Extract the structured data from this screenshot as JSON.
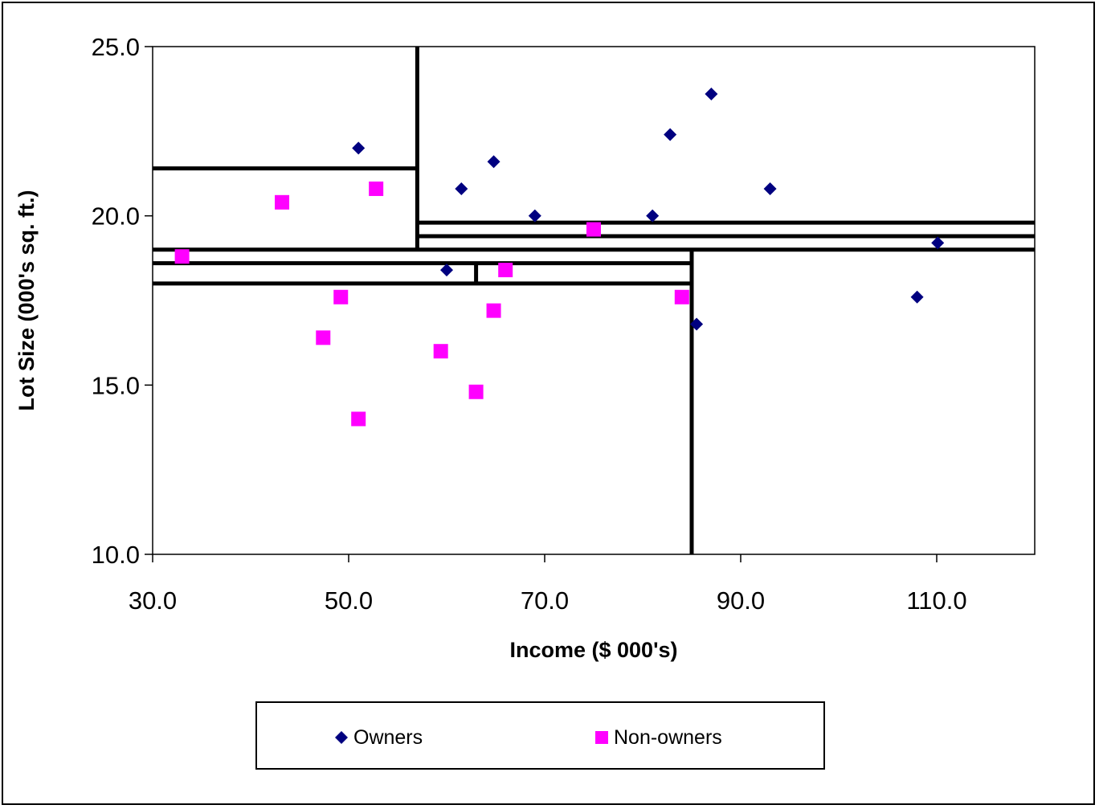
{
  "chart_data": {
    "type": "scatter",
    "title": "",
    "xlabel": "Income ($ 000's)",
    "ylabel": "Lot Size (000's sq. ft.)",
    "xlim": [
      30,
      120
    ],
    "ylim": [
      10,
      25
    ],
    "xticks": [
      "30.0",
      "50.0",
      "70.0",
      "90.0",
      "110.0"
    ],
    "xtick_values": [
      30,
      50,
      70,
      90,
      110
    ],
    "yticks": [
      "10.0",
      "15.0",
      "20.0",
      "25.0"
    ],
    "ytick_values": [
      10,
      15,
      20,
      25
    ],
    "grid": false,
    "legend_position": "bottom",
    "series": [
      {
        "name": "Owners",
        "marker": "diamond",
        "color": "#000080",
        "points": [
          [
            51.0,
            22.0
          ],
          [
            61.5,
            20.8
          ],
          [
            64.8,
            21.6
          ],
          [
            69.0,
            20.0
          ],
          [
            81.0,
            20.0
          ],
          [
            82.8,
            22.4
          ],
          [
            87.0,
            23.6
          ],
          [
            93.0,
            20.8
          ],
          [
            85.5,
            16.8
          ],
          [
            60.0,
            18.4
          ],
          [
            110.1,
            19.2
          ],
          [
            108.0,
            17.6
          ]
        ]
      },
      {
        "name": "Non-owners",
        "marker": "square",
        "color": "#ff00ff",
        "points": [
          [
            33.0,
            18.8
          ],
          [
            43.2,
            20.4
          ],
          [
            52.8,
            20.8
          ],
          [
            49.2,
            17.6
          ],
          [
            47.4,
            16.4
          ],
          [
            51.0,
            14.0
          ],
          [
            59.4,
            16.0
          ],
          [
            63.0,
            14.8
          ],
          [
            64.8,
            17.2
          ],
          [
            66.0,
            18.4
          ],
          [
            75.0,
            19.6
          ],
          [
            84.0,
            17.6
          ]
        ]
      }
    ],
    "split_lines": [
      {
        "orientation": "vertical",
        "x": 57.0,
        "y_range": [
          19.0,
          25.0
        ]
      },
      {
        "orientation": "vertical",
        "x": 85.0,
        "y_range": [
          10.0,
          19.0
        ]
      },
      {
        "orientation": "vertical",
        "x": 63.0,
        "y_range": [
          18.0,
          18.6
        ]
      },
      {
        "orientation": "horizontal",
        "y": 21.4,
        "x_range": [
          30.0,
          57.0
        ]
      },
      {
        "orientation": "horizontal",
        "y": 19.8,
        "x_range": [
          57.0,
          120.0
        ]
      },
      {
        "orientation": "horizontal",
        "y": 19.4,
        "x_range": [
          57.0,
          120.0
        ]
      },
      {
        "orientation": "horizontal",
        "y": 19.0,
        "x_range": [
          30.0,
          120.0
        ]
      },
      {
        "orientation": "horizontal",
        "y": 18.6,
        "x_range": [
          30.0,
          85.0
        ]
      },
      {
        "orientation": "horizontal",
        "y": 18.0,
        "x_range": [
          30.0,
          85.0
        ]
      }
    ]
  },
  "legend": {
    "owners_label": "Owners",
    "nonowners_label": "Non-owners"
  }
}
